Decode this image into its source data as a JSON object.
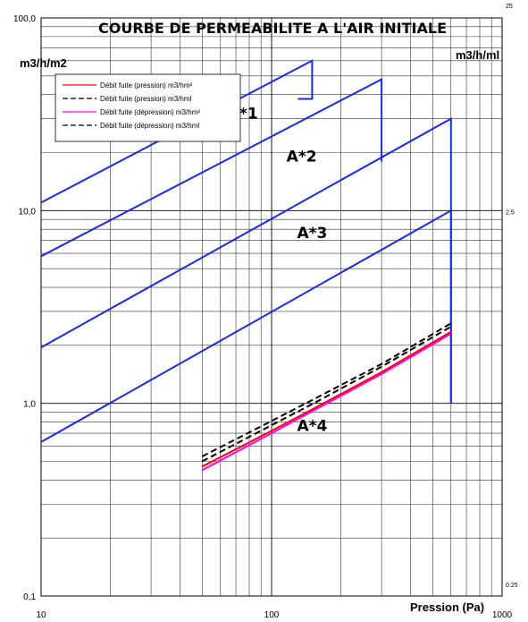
{
  "chart_data": {
    "type": "line",
    "title": "COURBE DE PERMEABILITE A L'AIR INITIALE",
    "xlabel": "Pression (Pa)",
    "ylabel_left": "m3/h/m2",
    "ylabel_right": "m3/h/ml",
    "x_scale": "log",
    "y_scale": "log",
    "xlim": [
      10,
      1000
    ],
    "ylim_left": [
      0.1,
      100
    ],
    "ylim_right": [
      0.25,
      25
    ],
    "x_ticks": [
      "10",
      "100",
      "1000"
    ],
    "y_ticks_left": [
      "0,1",
      "1,0",
      "10,0",
      "100,0"
    ],
    "y_ticks_right": [
      "0.25",
      "2,5",
      "25"
    ],
    "grid": true,
    "legend_position": "top-left",
    "series": [
      {
        "name": "Débit fuite (pression) m3/hm²",
        "color": "#ff0000",
        "style": "solid",
        "x": [
          50,
          100,
          150,
          300,
          600
        ],
        "y": [
          0.47,
          0.72,
          0.93,
          1.45,
          2.35
        ]
      },
      {
        "name": "Débit fuite (pression) m3/hml",
        "color": "#000000",
        "style": "dashed",
        "x": [
          50,
          100,
          150,
          300,
          600
        ],
        "y": [
          0.5,
          0.77,
          0.99,
          1.55,
          2.5
        ]
      },
      {
        "name": "Débit fuite (dépression) m3/hm²",
        "color": "#ff00ff",
        "style": "solid",
        "x": [
          50,
          100,
          150,
          300,
          600
        ],
        "y": [
          0.45,
          0.7,
          0.91,
          1.42,
          2.3
        ]
      },
      {
        "name": "Débit fuite (dépression) m3/hml",
        "color": "#000000",
        "style": "dashed",
        "x": [
          50,
          100,
          150,
          300,
          600
        ],
        "y": [
          0.53,
          0.81,
          1.04,
          1.6,
          2.6
        ]
      }
    ],
    "zones": [
      {
        "label": "A*1",
        "color": "#1a2be0",
        "x": [
          10,
          150,
          150,
          130
        ],
        "y": [
          11,
          60,
          38,
          38
        ],
        "label_x": 75,
        "label_y": 30
      },
      {
        "label": "A*2",
        "color": "#1a2be0",
        "x": [
          10,
          300,
          300,
          300
        ],
        "y": [
          5.8,
          48,
          18,
          18
        ],
        "label_x": 135,
        "label_y": 18
      },
      {
        "label": "A*3",
        "color": "#1a2be0",
        "x": [
          10,
          600,
          600,
          600
        ],
        "y": [
          1.95,
          30,
          30,
          1.0
        ],
        "label_x": 150,
        "label_y": 7.2
      },
      {
        "label": "A*4",
        "color": "#1a2be0",
        "x": [
          10,
          600,
          600,
          600
        ],
        "y": [
          0.63,
          10,
          10,
          1.0
        ],
        "label_x": 150,
        "label_y": 0.72
      }
    ]
  }
}
